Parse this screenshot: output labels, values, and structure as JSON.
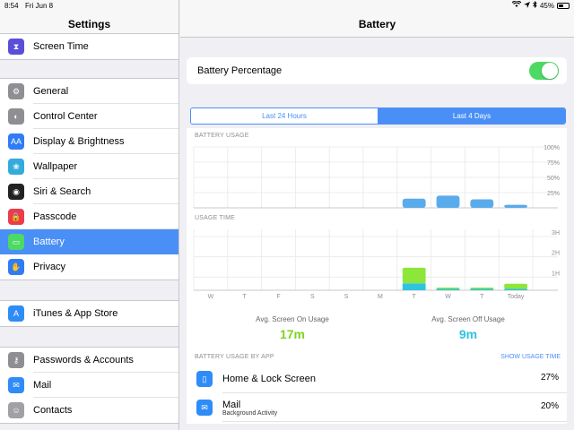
{
  "status": {
    "time": "8:54",
    "date": "Fri Jun 8",
    "battery_text": "45%",
    "battery_level": 0.45
  },
  "sidebar": {
    "title": "Settings",
    "groups": [
      {
        "items": [
          {
            "label": "Screen Time",
            "icon": "hourglass-icon",
            "color": "#5b4fd8"
          }
        ]
      },
      {
        "items": [
          {
            "label": "General",
            "icon": "gear-icon",
            "color": "#8e8e93"
          },
          {
            "label": "Control Center",
            "icon": "switches-icon",
            "color": "#8e8e93"
          },
          {
            "label": "Display & Brightness",
            "icon": "text-size-icon",
            "color": "#2f7cf6"
          },
          {
            "label": "Wallpaper",
            "icon": "flower-icon",
            "color": "#35aadc"
          },
          {
            "label": "Siri & Search",
            "icon": "siri-icon",
            "color": "#222222"
          },
          {
            "label": "Passcode",
            "icon": "lock-icon",
            "color": "#ec3c4c"
          },
          {
            "label": "Battery",
            "icon": "battery-icon",
            "color": "#4cd964",
            "active": true
          },
          {
            "label": "Privacy",
            "icon": "hand-icon",
            "color": "#2f7cf6"
          }
        ]
      },
      {
        "items": [
          {
            "label": "iTunes & App Store",
            "icon": "app-store-icon",
            "color": "#2f8cf7"
          }
        ]
      },
      {
        "items": [
          {
            "label": "Passwords & Accounts",
            "icon": "key-icon",
            "color": "#8e8e93"
          },
          {
            "label": "Mail",
            "icon": "envelope-icon",
            "color": "#2f8cf7"
          },
          {
            "label": "Contacts",
            "icon": "contacts-icon",
            "color": "#a0a0a5"
          }
        ]
      }
    ]
  },
  "main": {
    "title": "Battery",
    "battery_percentage_label": "Battery Percentage",
    "battery_percentage_on": true,
    "segments": {
      "left": "Last 24 Hours",
      "right": "Last 4 Days",
      "selected": "right"
    },
    "usage_label": "BATTERY USAGE",
    "usage_time_label": "USAGE TIME",
    "avg_on_label": "Avg. Screen On Usage",
    "avg_on_value": "17m",
    "avg_off_label": "Avg. Screen Off Usage",
    "avg_off_value": "9m",
    "by_app_label": "BATTERY USAGE BY APP",
    "show_usage_time": "SHOW USAGE TIME",
    "apps": [
      {
        "name": "Home & Lock Screen",
        "sub": "",
        "pct": "27%",
        "icon": "home-screen-icon",
        "color": "#2f8cf7"
      },
      {
        "name": "Mail",
        "sub": "Background Activity",
        "pct": "20%",
        "icon": "envelope-icon",
        "color": "#2f8cf7"
      }
    ]
  },
  "chart_data": [
    {
      "type": "bar",
      "title": "BATTERY USAGE",
      "categories": [
        "W",
        "T",
        "F",
        "S",
        "S",
        "M",
        "T",
        "W",
        "T",
        "Today"
      ],
      "values": [
        0,
        0,
        0,
        0,
        0,
        0,
        15,
        20,
        14,
        5
      ],
      "ylim": [
        0,
        100
      ],
      "yticks": [
        "100%",
        "75%",
        "50%",
        "25%"
      ],
      "color": "#5aabec"
    },
    {
      "type": "bar",
      "title": "USAGE TIME",
      "categories": [
        "W",
        "T",
        "F",
        "S",
        "S",
        "M",
        "T",
        "W",
        "T",
        "Today"
      ],
      "series": [
        {
          "name": "screen off",
          "values": [
            0,
            0,
            0,
            0,
            0,
            0,
            0.4,
            0.08,
            0.04,
            0.05
          ],
          "color": "#2ec4e0"
        },
        {
          "name": "screen on",
          "values": [
            0,
            0,
            0,
            0,
            0,
            0,
            0.9,
            0.02,
            0.03,
            0.3
          ],
          "color": "#8de63a"
        }
      ],
      "ylim": [
        0,
        3
      ],
      "yticks": [
        "3H",
        "2H",
        "1H"
      ]
    }
  ]
}
